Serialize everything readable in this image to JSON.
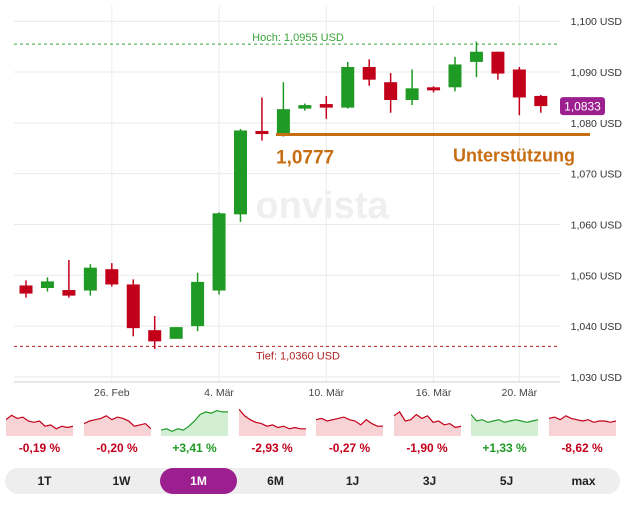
{
  "chart_data": {
    "type": "candlestick",
    "y_ticks": [
      "1,100 USD",
      "1,090 USD",
      "1,080 USD",
      "1,070 USD",
      "1,060 USD",
      "1,050 USD",
      "1,040 USD",
      "1,030 USD"
    ],
    "y_tick_values": [
      1.1,
      1.09,
      1.08,
      1.07,
      1.06,
      1.05,
      1.04,
      1.03
    ],
    "ylim": [
      1.029,
      1.103
    ],
    "x_ticks": [
      "26. Feb",
      "4. Mär",
      "10. Mär",
      "16. Mär",
      "20. Mär"
    ],
    "x_tick_index": [
      4,
      9,
      14,
      19,
      23
    ],
    "high_label": "Hoch: 1,0955 USD",
    "high_value": 1.0955,
    "low_label": "Tief: 1,0360 USD",
    "low_value": 1.036,
    "support_value": 1.0777,
    "support_value_label": "1,0777",
    "support_label": "Unterstützung",
    "last_price_label": "1,0833",
    "last_price_value": 1.0833,
    "watermark": "onvista",
    "candles": [
      {
        "open": 1.048,
        "high": 1.049,
        "low": 1.0456,
        "close": 1.0464
      },
      {
        "open": 1.0475,
        "high": 1.0496,
        "low": 1.0468,
        "close": 1.0488
      },
      {
        "open": 1.0471,
        "high": 1.053,
        "low": 1.0456,
        "close": 1.046
      },
      {
        "open": 1.047,
        "high": 1.0522,
        "low": 1.046,
        "close": 1.0515
      },
      {
        "open": 1.0512,
        "high": 1.0524,
        "low": 1.0478,
        "close": 1.0482
      },
      {
        "open": 1.0482,
        "high": 1.0492,
        "low": 1.038,
        "close": 1.0396
      },
      {
        "open": 1.0392,
        "high": 1.042,
        "low": 1.0355,
        "close": 1.037
      },
      {
        "open": 1.0375,
        "high": 1.0398,
        "low": 1.0375,
        "close": 1.0398
      },
      {
        "open": 1.04,
        "high": 1.0505,
        "low": 1.039,
        "close": 1.0487
      },
      {
        "open": 1.047,
        "high": 1.0624,
        "low": 1.0462,
        "close": 1.0622
      },
      {
        "open": 1.062,
        "high": 1.0788,
        "low": 1.0605,
        "close": 1.0785
      },
      {
        "open": 1.0784,
        "high": 1.085,
        "low": 1.0765,
        "close": 1.0778
      },
      {
        "open": 1.0777,
        "high": 1.088,
        "low": 1.0773,
        "close": 1.0827
      },
      {
        "open": 1.0828,
        "high": 1.0838,
        "low": 1.0824,
        "close": 1.0835
      },
      {
        "open": 1.0837,
        "high": 1.0853,
        "low": 1.0808,
        "close": 1.083
      },
      {
        "open": 1.083,
        "high": 1.092,
        "low": 1.0828,
        "close": 1.091
      },
      {
        "open": 1.091,
        "high": 1.0925,
        "low": 1.0873,
        "close": 1.0885
      },
      {
        "open": 1.088,
        "high": 1.0898,
        "low": 1.082,
        "close": 1.0845
      },
      {
        "open": 1.0845,
        "high": 1.0905,
        "low": 1.0835,
        "close": 1.0868
      },
      {
        "open": 1.087,
        "high": 1.0872,
        "low": 1.086,
        "close": 1.0864
      },
      {
        "open": 1.087,
        "high": 1.093,
        "low": 1.0862,
        "close": 1.0915
      },
      {
        "open": 1.092,
        "high": 1.096,
        "low": 1.089,
        "close": 1.094
      },
      {
        "open": 1.094,
        "high": 1.094,
        "low": 1.0885,
        "close": 1.0897
      },
      {
        "open": 1.0905,
        "high": 1.091,
        "low": 1.0815,
        "close": 1.085
      },
      {
        "open": 1.0853,
        "high": 1.0855,
        "low": 1.082,
        "close": 1.0833
      }
    ],
    "up_color": "#1f9a24",
    "down_color": "#c2001a"
  },
  "periods": [
    {
      "change": "-0,19 %",
      "positive": false,
      "trend": [
        0.55,
        0.72,
        0.6,
        0.65,
        0.5,
        0.45,
        0.5,
        0.3,
        0.35,
        0.2,
        0.3,
        0.25,
        0.3
      ]
    },
    {
      "change": "-0,20 %",
      "positive": false,
      "trend": [
        0.4,
        0.5,
        0.55,
        0.6,
        0.7,
        0.55,
        0.65,
        0.6,
        0.5,
        0.3,
        0.35,
        0.4,
        0.2
      ]
    },
    {
      "change": "+3,41 %",
      "positive": true,
      "trend": [
        0.15,
        0.2,
        0.1,
        0.2,
        0.15,
        0.3,
        0.5,
        0.75,
        0.85,
        0.8,
        0.9,
        0.85,
        0.85
      ]
    },
    {
      "change": "-2,93 %",
      "positive": false,
      "trend": [
        0.95,
        0.7,
        0.55,
        0.45,
        0.4,
        0.3,
        0.35,
        0.25,
        0.3,
        0.2,
        0.25,
        0.2,
        0.2
      ]
    },
    {
      "change": "-0,27 %",
      "positive": false,
      "trend": [
        0.55,
        0.6,
        0.5,
        0.55,
        0.6,
        0.65,
        0.55,
        0.5,
        0.35,
        0.55,
        0.4,
        0.3,
        0.3
      ]
    },
    {
      "change": "-1,90 %",
      "positive": false,
      "trend": [
        0.7,
        0.85,
        0.5,
        0.55,
        0.75,
        0.6,
        0.7,
        0.45,
        0.5,
        0.35,
        0.4,
        0.25,
        0.3
      ]
    },
    {
      "change": "+1,33 %",
      "positive": true,
      "trend": [
        0.75,
        0.5,
        0.55,
        0.45,
        0.5,
        0.55,
        0.45,
        0.5,
        0.55,
        0.5,
        0.45,
        0.5,
        0.55
      ]
    },
    {
      "change": "-8,62 %",
      "positive": false,
      "trend": [
        0.6,
        0.65,
        0.55,
        0.7,
        0.6,
        0.55,
        0.5,
        0.55,
        0.45,
        0.5,
        0.5,
        0.45,
        0.5
      ]
    }
  ],
  "tabs": [
    "1T",
    "1W",
    "1M",
    "6M",
    "1J",
    "3J",
    "5J",
    "max"
  ],
  "active_tab": "1M",
  "colors": {
    "accent": "#9b1f8f",
    "positive": "#1f9a24",
    "negative": "#c2001a",
    "support": "#c86e12",
    "high_line": "#3aa43a",
    "low_line": "#b02222"
  }
}
